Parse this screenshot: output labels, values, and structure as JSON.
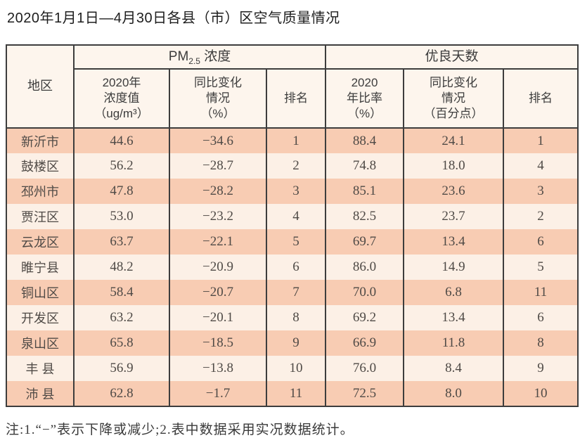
{
  "title": "2020年1月1日—4月30日各县（市）区空气质量情况",
  "note": "注:1.“−”表示下降或减少;2.表中数据采用实况数据统计。",
  "colors": {
    "row_odd_bg": "#f8ccb3",
    "row_even_bg": "#fcf0e6",
    "header_bg": "#fdf5ed",
    "border": "#3d3d3d",
    "header_text": "#3c3c3c",
    "cell_text": "#4f4a46",
    "title_text": "#1d1d1d"
  },
  "table": {
    "region_header": "地区",
    "groups": {
      "pm25_prefix": "PM",
      "pm25_sub": "2.5",
      "pm25_suffix": " 浓度",
      "good_days": "优良天数"
    },
    "subheaders": {
      "pm_value": "2020年\n浓度值\n（ug/m³）",
      "pm_change": "同比变化\n情况\n（%）",
      "pm_rank": "排名",
      "good_rate": "2020\n年比率\n（%）",
      "good_change": "同比变化\n情况\n（百分点）",
      "good_rank": "排名"
    },
    "row_fields": [
      "region",
      "pm_value",
      "pm_change",
      "pm_rank",
      "good_rate",
      "good_change",
      "good_rank"
    ],
    "rows": [
      {
        "region": "新沂市",
        "pm_value": "44.6",
        "pm_change": "−34.6",
        "pm_rank": "1",
        "good_rate": "88.4",
        "good_change": "24.1",
        "good_rank": "1"
      },
      {
        "region": "鼓楼区",
        "pm_value": "56.2",
        "pm_change": "−28.7",
        "pm_rank": "2",
        "good_rate": "74.8",
        "good_change": "18.0",
        "good_rank": "4"
      },
      {
        "region": "邳州市",
        "pm_value": "47.8",
        "pm_change": "−28.2",
        "pm_rank": "3",
        "good_rate": "85.1",
        "good_change": "23.6",
        "good_rank": "3"
      },
      {
        "region": "贾汪区",
        "pm_value": "53.0",
        "pm_change": "−23.2",
        "pm_rank": "4",
        "good_rate": "82.5",
        "good_change": "23.7",
        "good_rank": "2"
      },
      {
        "region": "云龙区",
        "pm_value": "63.7",
        "pm_change": "−22.1",
        "pm_rank": "5",
        "good_rate": "69.7",
        "good_change": "13.4",
        "good_rank": "6"
      },
      {
        "region": "睢宁县",
        "pm_value": "48.2",
        "pm_change": "−20.9",
        "pm_rank": "6",
        "good_rate": "86.0",
        "good_change": "14.9",
        "good_rank": "5"
      },
      {
        "region": "铜山区",
        "pm_value": "58.4",
        "pm_change": "−20.7",
        "pm_rank": "7",
        "good_rate": "70.0",
        "good_change": "6.8",
        "good_rank": "11"
      },
      {
        "region": "开发区",
        "pm_value": "63.2",
        "pm_change": "−20.1",
        "pm_rank": "8",
        "good_rate": "69.2",
        "good_change": "13.4",
        "good_rank": "6"
      },
      {
        "region": "泉山区",
        "pm_value": "65.8",
        "pm_change": "−18.5",
        "pm_rank": "9",
        "good_rate": "66.9",
        "good_change": "11.8",
        "good_rank": "8"
      },
      {
        "region": "丰 县",
        "pm_value": "56.9",
        "pm_change": "−13.8",
        "pm_rank": "10",
        "good_rate": "76.0",
        "good_change": "8.4",
        "good_rank": "9"
      },
      {
        "region": "沛 县",
        "pm_value": "62.8",
        "pm_change": "−1.7",
        "pm_rank": "11",
        "good_rate": "72.5",
        "good_change": "8.0",
        "good_rank": "10"
      }
    ]
  },
  "chart_data": {
    "type": "table",
    "title": "2020年1月1日—4月30日各县（市）区空气质量情况",
    "column_groups": [
      "地区",
      "PM2.5浓度",
      "优良天数"
    ],
    "columns": [
      "地区",
      "2020年浓度值（ug/m³）",
      "同比变化情况（%）",
      "排名",
      "2020年比率（%）",
      "同比变化情况（百分点）",
      "排名"
    ],
    "rows": [
      [
        "新沂市",
        44.6,
        -34.6,
        1,
        88.4,
        24.1,
        1
      ],
      [
        "鼓楼区",
        56.2,
        -28.7,
        2,
        74.8,
        18.0,
        4
      ],
      [
        "邳州市",
        47.8,
        -28.2,
        3,
        85.1,
        23.6,
        3
      ],
      [
        "贾汪区",
        53.0,
        -23.2,
        4,
        82.5,
        23.7,
        2
      ],
      [
        "云龙区",
        63.7,
        -22.1,
        5,
        69.7,
        13.4,
        6
      ],
      [
        "睢宁县",
        48.2,
        -20.9,
        6,
        86.0,
        14.9,
        5
      ],
      [
        "铜山区",
        58.4,
        -20.7,
        7,
        70.0,
        6.8,
        11
      ],
      [
        "开发区",
        63.2,
        -20.1,
        8,
        69.2,
        13.4,
        6
      ],
      [
        "泉山区",
        65.8,
        -18.5,
        9,
        66.9,
        11.8,
        8
      ],
      [
        "丰县",
        56.9,
        -13.8,
        10,
        76.0,
        8.4,
        9
      ],
      [
        "沛县",
        62.8,
        -1.7,
        11,
        72.5,
        8.0,
        10
      ]
    ],
    "note": "注:1.“−”表示下降或减少;2.表中数据采用实况数据统计。"
  }
}
